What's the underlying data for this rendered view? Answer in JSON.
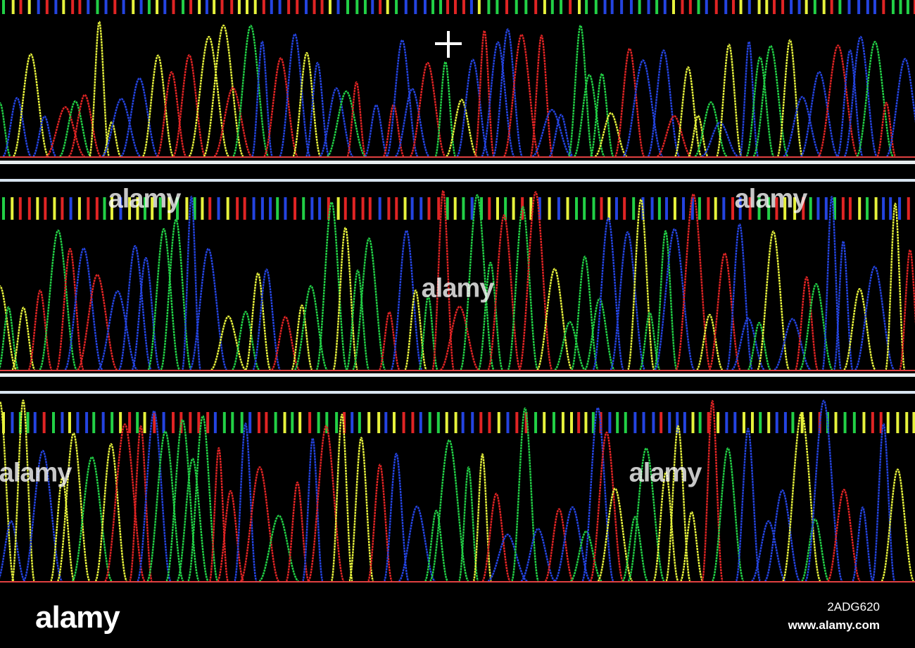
{
  "watermarks": [
    "alamy",
    "alamy",
    "alamy",
    "alamy",
    "alamy"
  ],
  "footer": {
    "logo": "alamy",
    "image_id": "2ADG620",
    "url": "www.alamy.com"
  }
}
